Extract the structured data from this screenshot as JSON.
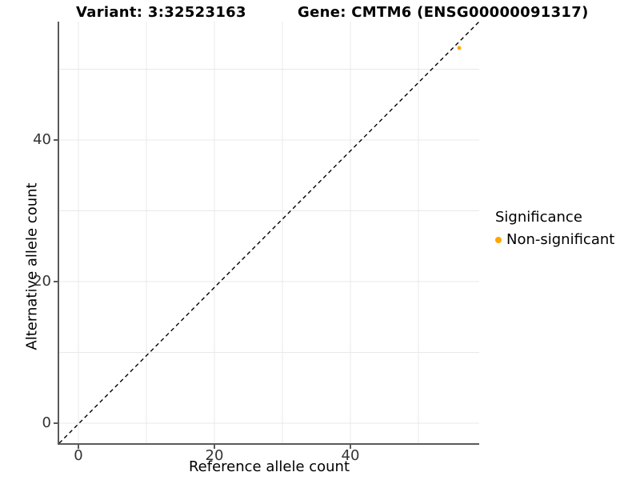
{
  "colors": {
    "point_orange": "#FFA500",
    "grid": "#E8E8E8",
    "axis_line": "#5A5A5A",
    "tick_text": "#333333",
    "identity_line": "#000000",
    "background": "#FFFFFF"
  },
  "chart_data": {
    "type": "scatter",
    "title_left": "Variant: 3:32523163",
    "title_right": "Gene: CMTM6 (ENSG00000091317)",
    "xlabel": "Reference allele count",
    "ylabel": "Alternative allele count",
    "x_ticks": [
      0,
      20,
      40
    ],
    "y_ticks": [
      0,
      20,
      40
    ],
    "x_minor_ticks": [
      10,
      30,
      50
    ],
    "y_minor_ticks": [
      10,
      30,
      50
    ],
    "xlim": [
      -2.8,
      59
    ],
    "ylim": [
      -2.8,
      59.5
    ],
    "grid": true,
    "identity_line": {
      "style": "dashed",
      "slope": 1,
      "intercept": 0,
      "color": "#000000"
    },
    "points": [
      {
        "x": 56,
        "y": 53,
        "series": "Non-significant",
        "color": "#FFA500",
        "radius": 2.4
      }
    ],
    "legend": {
      "title": "Significance",
      "position": "right",
      "items": [
        {
          "label": "Non-significant",
          "color": "#FFA500"
        }
      ]
    }
  }
}
